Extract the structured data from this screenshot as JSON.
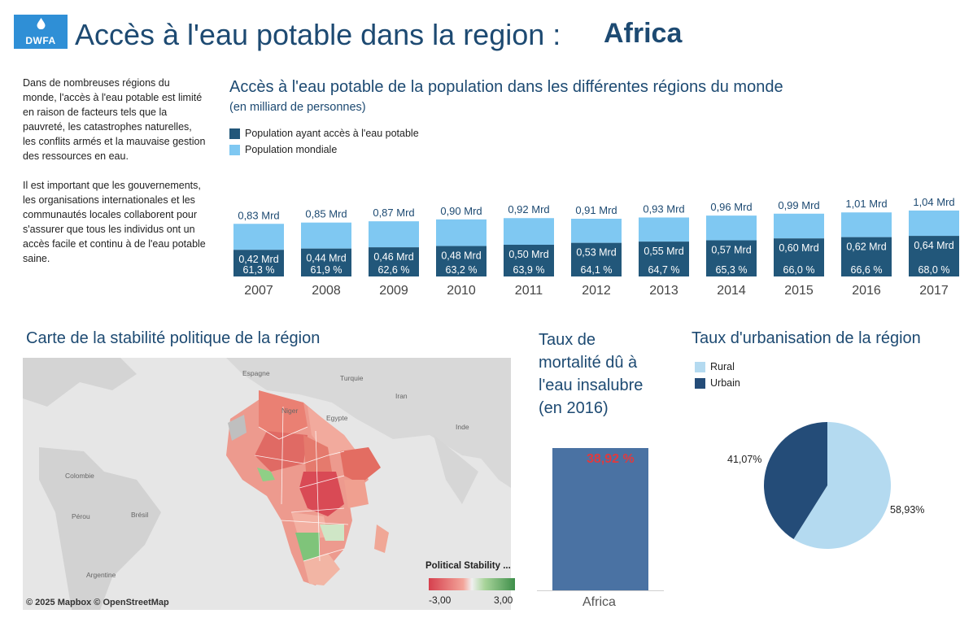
{
  "header": {
    "logo_text": "DWFA",
    "title": "Accès à l'eau potable dans la region :",
    "region": "Africa"
  },
  "intro": {
    "paragraph1": "Dans de nombreuses régions du monde, l'accès à l'eau potable est limité en raison de facteurs tels que la pauvreté, les catastrophes naturelles, les conflits armés et la mauvaise gestion des ressources en eau.",
    "paragraph2": "Il est important que les gouvernements, les organisations internationales et les communautés locales collaborent pour s'assurer que tous les individus ont un accès facile et continu à de l'eau potable saine."
  },
  "access_chart": {
    "title": "Accès à l'eau potable de la population dans les différentes régions du monde",
    "subtitle": "(en milliard de personnes)",
    "legend": [
      {
        "label": "Population ayant accès à l'eau potable",
        "color": "#22577a"
      },
      {
        "label": "Population mondiale",
        "color": "#7fc8f2"
      }
    ]
  },
  "chart_data": {
    "type": "bar",
    "categories": [
      "2007",
      "2008",
      "2009",
      "2010",
      "2011",
      "2012",
      "2013",
      "2014",
      "2015",
      "2016",
      "2017"
    ],
    "series": [
      {
        "name": "Population mondiale",
        "values": [
          0.83,
          0.85,
          0.87,
          0.9,
          0.92,
          0.91,
          0.93,
          0.96,
          0.99,
          1.01,
          1.04
        ],
        "labels": [
          "0,83 Mrd",
          "0,85 Mrd",
          "0,87 Mrd",
          "0,90 Mrd",
          "0,92 Mrd",
          "0,91 Mrd",
          "0,93 Mrd",
          "0,96 Mrd",
          "0,99 Mrd",
          "1,01 Mrd",
          "1,04 Mrd"
        ]
      },
      {
        "name": "Population ayant accès à l'eau potable",
        "values": [
          0.42,
          0.44,
          0.46,
          0.48,
          0.5,
          0.53,
          0.55,
          0.57,
          0.6,
          0.62,
          0.64
        ],
        "labels": [
          "0,42 Mrd",
          "0,44 Mrd",
          "0,46 Mrd",
          "0,48 Mrd",
          "0,50 Mrd",
          "0,53 Mrd",
          "0,55 Mrd",
          "0,57 Mrd",
          "0,60 Mrd",
          "0,62 Mrd",
          "0,64 Mrd"
        ],
        "percent_labels": [
          "61,3 %",
          "61,9 %",
          "62,6 %",
          "63,2 %",
          "63,9 %",
          "64,1 %",
          "64,7 %",
          "65,3 %",
          "66,0 %",
          "66,6 %",
          "68,0 %"
        ]
      }
    ]
  },
  "map": {
    "title": "Carte de la stabilité politique de la région",
    "credit": "© 2025 Mapbox  © OpenStreetMap",
    "labels": [
      "Espagne",
      "Turquie",
      "Iran",
      "Niger",
      "Egypte",
      "Inde",
      "Colombie",
      "Pérou",
      "Brésil",
      "Argentine"
    ],
    "legend_title": "Political Stability ...",
    "legend_min": "-3,00",
    "legend_max": "3,00"
  },
  "mortality": {
    "title": "Taux de mortalité dû à l'eau insalubre (en 2016)",
    "value": 38.92,
    "value_label": "38,92 %",
    "category": "Africa"
  },
  "urbanisation": {
    "title": "Taux d'urbanisation de la région",
    "legend": [
      {
        "label": "Rural",
        "color": "#b4daf0"
      },
      {
        "label": "Urbain",
        "color": "#244c78"
      }
    ],
    "rural_pct": 58.93,
    "urbain_pct": 41.07,
    "rural_label": "58,93%",
    "urbain_label": "41,07%"
  }
}
